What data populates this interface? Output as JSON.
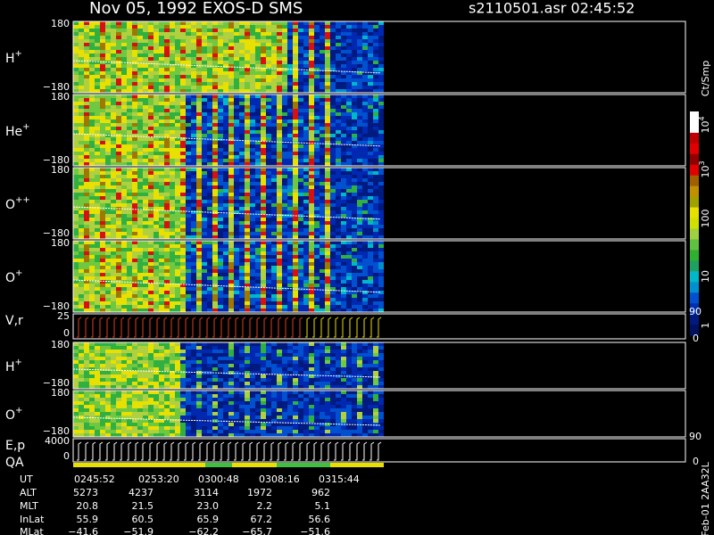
{
  "header": {
    "title": "Nov 05, 1992   EXOS-D SMS",
    "file": "s2110501.asr  02:45:52"
  },
  "panels": [
    {
      "label": "H",
      "sup": "+",
      "top": "180",
      "bottom": "−180"
    },
    {
      "label": "He",
      "sup": "+",
      "top": "180",
      "bottom": "−180"
    },
    {
      "label": "O",
      "sup": "++",
      "top": "180",
      "bottom": "−180"
    },
    {
      "label": "O",
      "sup": "+",
      "top": "180",
      "bottom": "−180"
    },
    {
      "label": "V,r",
      "sup": "",
      "top": "25",
      "bottom": "0",
      "right_top": "90",
      "right_bottom": "0"
    },
    {
      "label": "H",
      "sup": "+",
      "top": "180",
      "bottom": "−180"
    },
    {
      "label": "O",
      "sup": "+",
      "top": "180",
      "bottom": "−180"
    },
    {
      "label": "E,p",
      "sup": "",
      "top": "4000",
      "bottom": "0",
      "right_top": "90",
      "right_bottom": "0"
    }
  ],
  "qa_label": "QA",
  "colorbar": {
    "unit": "Ct/Smp",
    "labels": [
      {
        "base": "10",
        "exp": "4"
      },
      {
        "base": "10",
        "exp": "3"
      },
      {
        "base": "100",
        "exp": ""
      },
      {
        "base": "10",
        "exp": ""
      },
      {
        "base": "1",
        "exp": ""
      }
    ]
  },
  "table": {
    "rows": [
      [
        "UT",
        "0245:52",
        "0253:20",
        "0300:48",
        "0308:16",
        "0315:44"
      ],
      [
        "ALT",
        "5273",
        "4237",
        "3114",
        "1972",
        "962"
      ],
      [
        "MLT",
        "20.8",
        "21.5",
        "23.0",
        "2.2",
        "5.1"
      ],
      [
        "InLat",
        "55.9",
        "60.5",
        "65.9",
        "67.2",
        "56.6"
      ],
      [
        "MLat",
        "−41.6",
        "−51.9",
        "−62.2",
        "−65.7",
        "−51.6"
      ]
    ]
  },
  "footer_note": "Feb-01 2AA32L"
}
